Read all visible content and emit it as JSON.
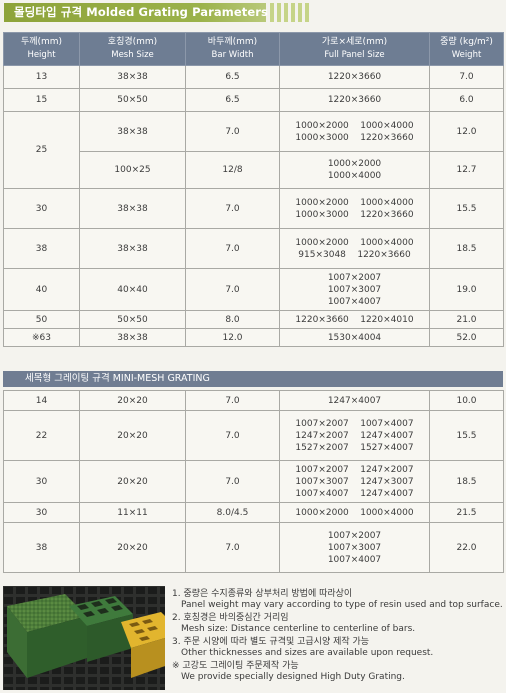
{
  "title": "몰딩타입 규격  Molded Grating Parameters",
  "header": {
    "height_ko": "두께(mm)",
    "height_en": "Height",
    "mesh_ko": "호칭경(mm)",
    "mesh_en": "Mesh Size",
    "bar_ko": "바두께(mm)",
    "bar_en": "Bar Width",
    "panel_ko": "가로×세로(mm)",
    "panel_en": "Full Panel Size",
    "weight_ko": "중량 (kg/m²)",
    "weight_en": "Weight"
  },
  "rows": [
    {
      "height": "13",
      "mesh": "38×38",
      "bar": "6.5",
      "panel": [
        "1220×3660"
      ],
      "weight": "7.0"
    },
    {
      "height": "15",
      "mesh": "50×50",
      "bar": "6.5",
      "panel": [
        "1220×3660"
      ],
      "weight": "6.0"
    },
    {
      "height": "25",
      "mesh": "38×38",
      "bar": "7.0",
      "panel": [
        "1000×2000    1000×4000",
        "1000×3000    1220×3660"
      ],
      "weight": "12.0"
    },
    {
      "height": "",
      "mesh": "100×25",
      "bar": "12/8",
      "panel": [
        "1000×2000",
        "1000×4000"
      ],
      "weight": "12.7"
    },
    {
      "height": "30",
      "mesh": "38×38",
      "bar": "7.0",
      "panel": [
        "1000×2000    1000×4000",
        "1000×3000    1220×3660"
      ],
      "weight": "15.5"
    },
    {
      "height": "38",
      "mesh": "38×38",
      "bar": "7.0",
      "panel": [
        "1000×2000    1000×4000",
        "915×3048    1220×3660"
      ],
      "weight": "18.5"
    },
    {
      "height": "40",
      "mesh": "40×40",
      "bar": "7.0",
      "panel": [
        "1007×2007",
        "1007×3007",
        "1007×4007"
      ],
      "weight": "19.0"
    },
    {
      "height": "50",
      "mesh": "50×50",
      "bar": "8.0",
      "panel": [
        "1220×3660    1220×4010"
      ],
      "weight": "21.0"
    },
    {
      "height": "※63",
      "mesh": "38×38",
      "bar": "12.0",
      "panel": [
        "1530×4004"
      ],
      "weight": "52.0"
    }
  ],
  "mini_title": "세목형 그레이팅 규격  MINI-MESH GRATING",
  "mini_rows": [
    {
      "height": "14",
      "mesh": "20×20",
      "bar": "7.0",
      "panel": [
        "1247×4007"
      ],
      "weight": "10.0"
    },
    {
      "height": "22",
      "mesh": "20×20",
      "bar": "7.0",
      "panel": [
        "1007×2007    1007×4007",
        "1247×2007    1247×4007",
        "1527×2007    1527×4007"
      ],
      "weight": "15.5"
    },
    {
      "height": "30",
      "mesh": "20×20",
      "bar": "7.0",
      "panel": [
        "1007×2007    1247×2007",
        "1007×3007    1247×3007",
        "1007×4007    1247×4007"
      ],
      "weight": "18.5"
    },
    {
      "height": "30",
      "mesh": "11×11",
      "bar": "8.0/4.5",
      "panel": [
        "1000×2000    1000×4000"
      ],
      "weight": "21.5"
    },
    {
      "height": "38",
      "mesh": "20×20",
      "bar": "7.0",
      "panel": [
        "1007×2007",
        "1007×3007",
        "1007×4007"
      ],
      "weight": "22.0"
    }
  ],
  "notes": {
    "n1_ko": "1. 중량은 수지종류와 상부처리 방법에 따라상이",
    "n1_en": "Panel weight may vary according to type of resin used and top surface.",
    "n2_ko": "2. 호칭경은 바의중심간 거리임",
    "n2_en": "Mesh size: Distance centerline to centerline of bars.",
    "n3_ko": "3. 주문 시양에 따라 별도 규격및 고급시양 제작 가능",
    "n3_en": "Other thicknesses and sizes are available upon request.",
    "n4_ko": "※ 고강도 그레이팅 주문제작 가능",
    "n4_en": "We provide specially designed High Duty Grating."
  },
  "colors": {
    "title_bar": "#8da33a",
    "header_bg": "#6e7d93",
    "photo_green": "#3f7a3c",
    "photo_yellow": "#e2b52e"
  }
}
